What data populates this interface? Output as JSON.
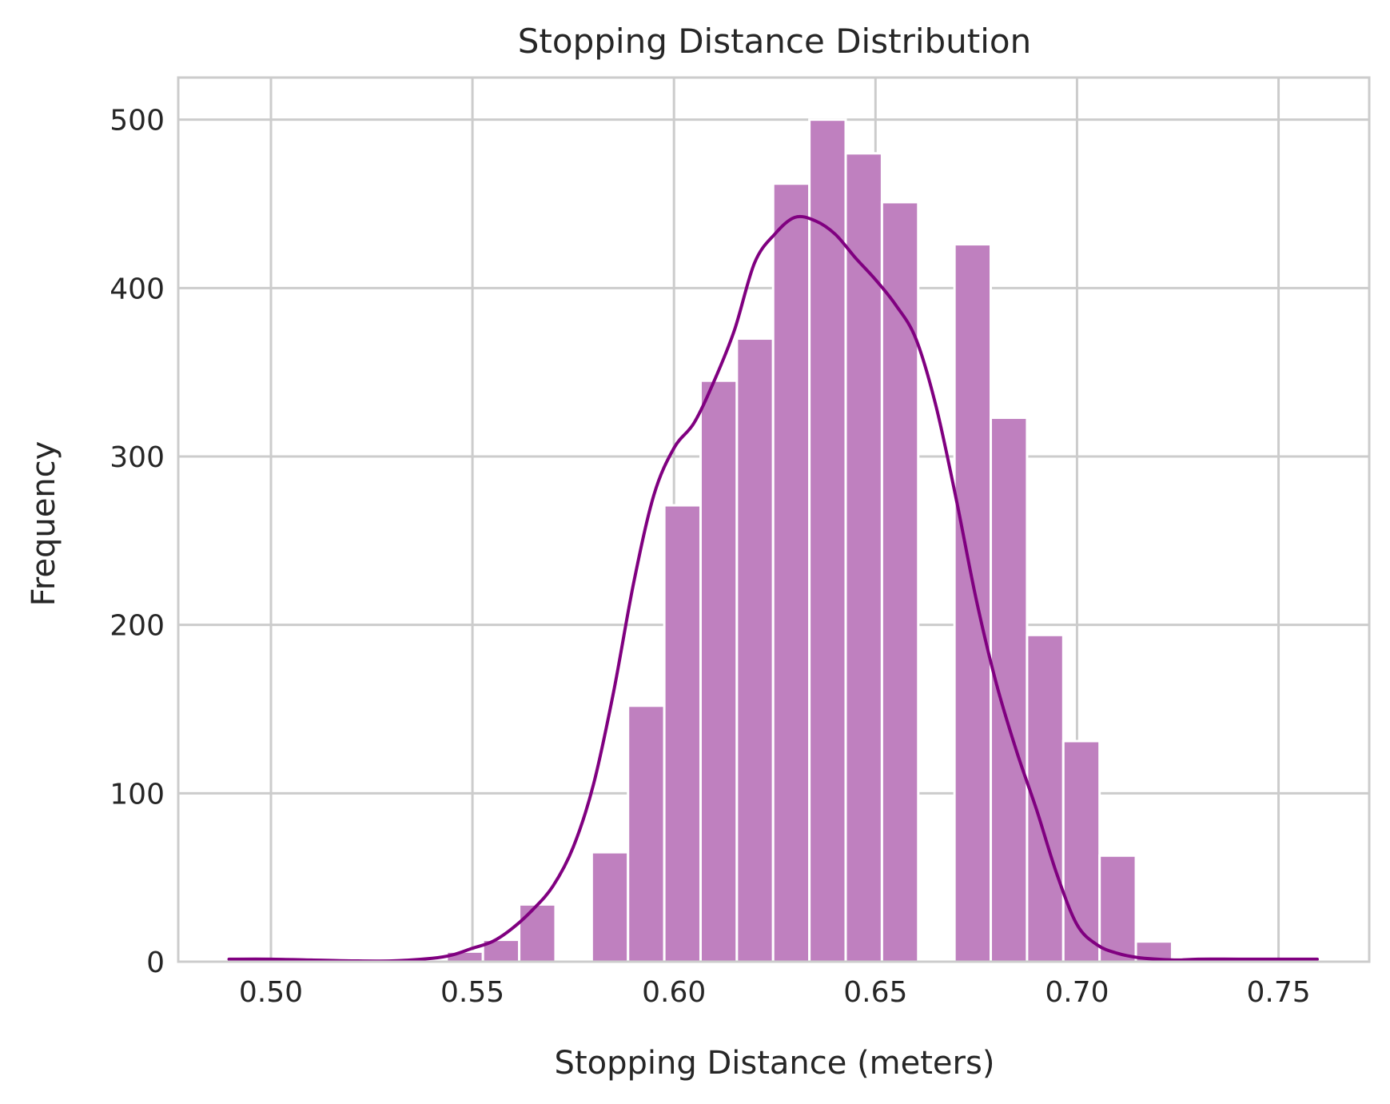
{
  "chart_data": {
    "type": "bar",
    "title": "Stopping Distance Distribution",
    "xlabel": "Stopping Distance (meters)",
    "ylabel": "Frequency",
    "xlim": [
      0.477,
      0.7725
    ],
    "ylim": [
      0,
      525
    ],
    "xticks": [
      0.5,
      0.55,
      0.6,
      0.65,
      0.7,
      0.75
    ],
    "xtick_labels": [
      "0.50",
      "0.55",
      "0.60",
      "0.65",
      "0.70",
      "0.75"
    ],
    "yticks": [
      0,
      100,
      200,
      300,
      400,
      500
    ],
    "ytick_labels": [
      "0",
      "100",
      "200",
      "300",
      "400",
      "500"
    ],
    "grid": true,
    "colors": {
      "bar_fill": "#bf80bf",
      "line": "#800080",
      "grid": "#cccccc",
      "text": "#262626"
    },
    "bins": [
      {
        "x0": 0.4896,
        "x1": 0.4986,
        "count": 1
      },
      {
        "x0": 0.4986,
        "x1": 0.5076,
        "count": 1
      },
      {
        "x0": 0.5076,
        "x1": 0.5166,
        "count": 0
      },
      {
        "x0": 0.5166,
        "x1": 0.5256,
        "count": 0
      },
      {
        "x0": 0.5256,
        "x1": 0.5346,
        "count": 0
      },
      {
        "x0": 0.5346,
        "x1": 0.5436,
        "count": 1
      },
      {
        "x0": 0.5436,
        "x1": 0.5526,
        "count": 6
      },
      {
        "x0": 0.5526,
        "x1": 0.5616,
        "count": 13
      },
      {
        "x0": 0.5616,
        "x1": 0.5706,
        "count": 34
      },
      {
        "x0": 0.5706,
        "x1": 0.5796,
        "count": 0
      },
      {
        "x0": 0.5796,
        "x1": 0.5886,
        "count": 65
      },
      {
        "x0": 0.5886,
        "x1": 0.5976,
        "count": 152
      },
      {
        "x0": 0.5976,
        "x1": 0.6066,
        "count": 271
      },
      {
        "x0": 0.6066,
        "x1": 0.6156,
        "count": 345
      },
      {
        "x0": 0.6156,
        "x1": 0.6246,
        "count": 370
      },
      {
        "x0": 0.6246,
        "x1": 0.6336,
        "count": 462
      },
      {
        "x0": 0.6336,
        "x1": 0.6426,
        "count": 500
      },
      {
        "x0": 0.6426,
        "x1": 0.6516,
        "count": 480
      },
      {
        "x0": 0.6516,
        "x1": 0.6606,
        "count": 451
      },
      {
        "x0": 0.6606,
        "x1": 0.6696,
        "count": 0
      },
      {
        "x0": 0.6696,
        "x1": 0.6786,
        "count": 426
      },
      {
        "x0": 0.6786,
        "x1": 0.6876,
        "count": 323
      },
      {
        "x0": 0.6876,
        "x1": 0.6966,
        "count": 194
      },
      {
        "x0": 0.6966,
        "x1": 0.7056,
        "count": 131
      },
      {
        "x0": 0.7056,
        "x1": 0.7146,
        "count": 63
      },
      {
        "x0": 0.7146,
        "x1": 0.7236,
        "count": 12
      },
      {
        "x0": 0.7236,
        "x1": 0.7326,
        "count": 2
      },
      {
        "x0": 0.7326,
        "x1": 0.7416,
        "count": 0
      },
      {
        "x0": 0.7416,
        "x1": 0.7506,
        "count": 0
      },
      {
        "x0": 0.7506,
        "x1": 0.7596,
        "count": 1
      }
    ],
    "kde": {
      "x": [
        0.4896,
        0.5,
        0.51,
        0.52,
        0.53,
        0.54,
        0.545,
        0.55,
        0.555,
        0.56,
        0.565,
        0.57,
        0.575,
        0.58,
        0.585,
        0.59,
        0.595,
        0.6,
        0.605,
        0.61,
        0.615,
        0.62,
        0.625,
        0.63,
        0.635,
        0.64,
        0.645,
        0.65,
        0.655,
        0.66,
        0.665,
        0.67,
        0.675,
        0.68,
        0.685,
        0.69,
        0.695,
        0.7,
        0.705,
        0.71,
        0.715,
        0.72,
        0.725,
        0.73,
        0.74,
        0.75,
        0.7596
      ],
      "y": [
        1.5,
        1.5,
        1,
        0.5,
        0.5,
        2,
        4,
        8,
        12,
        20,
        31,
        45,
        68,
        105,
        160,
        225,
        277,
        305,
        320,
        345,
        375,
        415,
        432,
        442,
        440,
        432,
        418,
        405,
        390,
        370,
        330,
        275,
        215,
        165,
        125,
        90,
        52,
        22,
        10,
        5,
        2.5,
        1.5,
        1,
        1.5,
        1.5,
        1.5,
        1.5
      ]
    }
  }
}
